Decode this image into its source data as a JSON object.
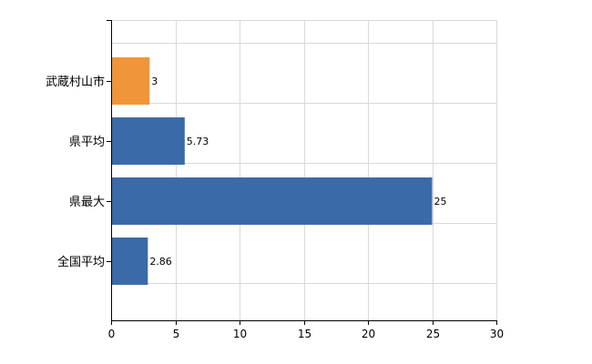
{
  "chart_data": {
    "type": "bar",
    "orientation": "horizontal",
    "categories": [
      "武蔵村山市",
      "県平均",
      "県最大",
      "全国平均"
    ],
    "values": [
      3,
      5.73,
      25,
      2.86
    ],
    "value_labels": [
      "3",
      "5.73",
      "25",
      "2.86"
    ],
    "bar_colors": [
      "#f0953a",
      "#3b6aa8",
      "#3b6aa8",
      "#3b6aa8"
    ],
    "xlim": [
      0,
      30
    ],
    "xticks": [
      0,
      5,
      10,
      15,
      20,
      25,
      30
    ],
    "tick_labels": [
      "0",
      "5",
      "10",
      "15",
      "20",
      "25",
      "30"
    ],
    "title": "",
    "xlabel": "",
    "ylabel": "",
    "grid": true,
    "grid_color": "#d9d9d9",
    "axis_color": "#000000"
  }
}
